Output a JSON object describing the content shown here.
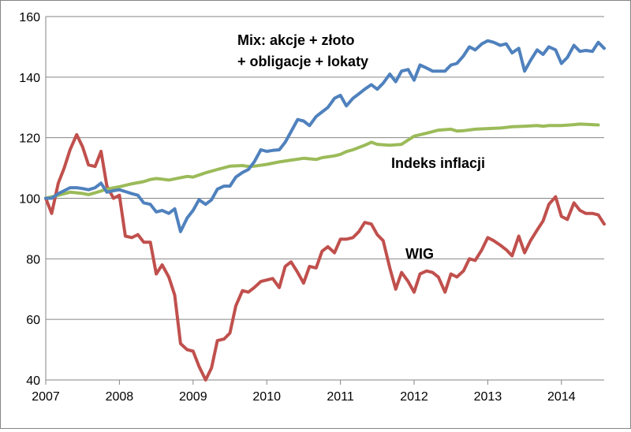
{
  "chart_data": {
    "type": "line",
    "title": "",
    "xlabel": "",
    "ylabel": "",
    "xlim": [
      2007.0,
      2014.58
    ],
    "ylim": [
      40,
      160
    ],
    "grid": "horizontal",
    "legend": "none",
    "x_ticks": [
      "2007",
      "2008",
      "2009",
      "2010",
      "2011",
      "2012",
      "2013",
      "2014"
    ],
    "y_ticks": [
      "40",
      "60",
      "80",
      "100",
      "120",
      "140",
      "160"
    ],
    "annotations": [
      {
        "lines": [
          "Mix: akcje + złoto",
          "+ obligacje + lokaty"
        ],
        "series": "mix"
      },
      {
        "lines": [
          "Indeks inflacji"
        ],
        "series": "inflation"
      },
      {
        "lines": [
          "WIG"
        ],
        "series": "wig"
      }
    ],
    "series": [
      {
        "key": "wig",
        "color": "#C0504D",
        "points": [
          [
            2007.0,
            100
          ],
          [
            2007.08,
            95
          ],
          [
            2007.17,
            105
          ],
          [
            2007.25,
            110
          ],
          [
            2007.33,
            116
          ],
          [
            2007.42,
            121
          ],
          [
            2007.5,
            117
          ],
          [
            2007.58,
            111
          ],
          [
            2007.67,
            110.5
          ],
          [
            2007.75,
            115.5
          ],
          [
            2007.83,
            104
          ],
          [
            2007.92,
            100
          ],
          [
            2008.0,
            101
          ],
          [
            2008.08,
            87.5
          ],
          [
            2008.17,
            87
          ],
          [
            2008.25,
            88
          ],
          [
            2008.33,
            85.5
          ],
          [
            2008.42,
            85.5
          ],
          [
            2008.5,
            75
          ],
          [
            2008.58,
            78
          ],
          [
            2008.67,
            74
          ],
          [
            2008.75,
            68
          ],
          [
            2008.83,
            52
          ],
          [
            2008.92,
            50
          ],
          [
            2009.0,
            49.5
          ],
          [
            2009.08,
            44.5
          ],
          [
            2009.17,
            40
          ],
          [
            2009.25,
            44
          ],
          [
            2009.33,
            53
          ],
          [
            2009.42,
            53.5
          ],
          [
            2009.5,
            55.5
          ],
          [
            2009.58,
            64.5
          ],
          [
            2009.67,
            69.5
          ],
          [
            2009.75,
            69
          ],
          [
            2009.83,
            70.5
          ],
          [
            2009.92,
            72.5
          ],
          [
            2010.0,
            73
          ],
          [
            2010.08,
            73.5
          ],
          [
            2010.17,
            70.5
          ],
          [
            2010.25,
            77.5
          ],
          [
            2010.33,
            79
          ],
          [
            2010.42,
            75.5
          ],
          [
            2010.5,
            72
          ],
          [
            2010.58,
            77.5
          ],
          [
            2010.67,
            77
          ],
          [
            2010.75,
            82.5
          ],
          [
            2010.83,
            84
          ],
          [
            2010.92,
            82
          ],
          [
            2011.0,
            86.5
          ],
          [
            2011.08,
            86.5
          ],
          [
            2011.17,
            87
          ],
          [
            2011.25,
            89
          ],
          [
            2011.33,
            92
          ],
          [
            2011.42,
            91.5
          ],
          [
            2011.5,
            88
          ],
          [
            2011.58,
            86
          ],
          [
            2011.67,
            77
          ],
          [
            2011.75,
            70
          ],
          [
            2011.83,
            75.5
          ],
          [
            2011.92,
            72.5
          ],
          [
            2012.0,
            69
          ],
          [
            2012.08,
            75
          ],
          [
            2012.17,
            76
          ],
          [
            2012.25,
            75.5
          ],
          [
            2012.33,
            74
          ],
          [
            2012.42,
            69
          ],
          [
            2012.5,
            75
          ],
          [
            2012.58,
            74
          ],
          [
            2012.67,
            76
          ],
          [
            2012.75,
            80
          ],
          [
            2012.83,
            79.5
          ],
          [
            2012.92,
            83
          ],
          [
            2013.0,
            87
          ],
          [
            2013.08,
            86
          ],
          [
            2013.17,
            84.5
          ],
          [
            2013.25,
            83
          ],
          [
            2013.33,
            81
          ],
          [
            2013.42,
            87.5
          ],
          [
            2013.5,
            82
          ],
          [
            2013.58,
            86
          ],
          [
            2013.67,
            89.5
          ],
          [
            2013.75,
            92.5
          ],
          [
            2013.83,
            98
          ],
          [
            2013.92,
            100.5
          ],
          [
            2014.0,
            94
          ],
          [
            2014.08,
            93
          ],
          [
            2014.17,
            98.5
          ],
          [
            2014.25,
            96
          ],
          [
            2014.33,
            95
          ],
          [
            2014.42,
            95
          ],
          [
            2014.5,
            94.5
          ],
          [
            2014.58,
            91.5
          ]
        ]
      },
      {
        "key": "inflation",
        "color": "#9BBB59",
        "points": [
          [
            2007.0,
            100
          ],
          [
            2007.17,
            101
          ],
          [
            2007.33,
            102
          ],
          [
            2007.5,
            101.6
          ],
          [
            2007.58,
            101.2
          ],
          [
            2007.67,
            101.8
          ],
          [
            2007.83,
            103
          ],
          [
            2008.0,
            103.8
          ],
          [
            2008.17,
            104.8
          ],
          [
            2008.33,
            105.5
          ],
          [
            2008.42,
            106.2
          ],
          [
            2008.5,
            106.5
          ],
          [
            2008.58,
            106.3
          ],
          [
            2008.67,
            106
          ],
          [
            2008.83,
            106.8
          ],
          [
            2008.92,
            107.2
          ],
          [
            2009.0,
            107
          ],
          [
            2009.17,
            108.4
          ],
          [
            2009.33,
            109.5
          ],
          [
            2009.5,
            110.6
          ],
          [
            2009.67,
            110.8
          ],
          [
            2009.75,
            110.5
          ],
          [
            2009.83,
            110.6
          ],
          [
            2010.0,
            111.2
          ],
          [
            2010.17,
            112
          ],
          [
            2010.33,
            112.6
          ],
          [
            2010.5,
            113.2
          ],
          [
            2010.67,
            112.8
          ],
          [
            2010.75,
            113.4
          ],
          [
            2010.92,
            114
          ],
          [
            2011.0,
            114.5
          ],
          [
            2011.08,
            115.4
          ],
          [
            2011.17,
            116
          ],
          [
            2011.33,
            117.5
          ],
          [
            2011.42,
            118.5
          ],
          [
            2011.5,
            117.8
          ],
          [
            2011.67,
            117.5
          ],
          [
            2011.83,
            117.8
          ],
          [
            2012.0,
            120.5
          ],
          [
            2012.17,
            121.5
          ],
          [
            2012.33,
            122.5
          ],
          [
            2012.5,
            122.8
          ],
          [
            2012.58,
            122.2
          ],
          [
            2012.67,
            122.3
          ],
          [
            2012.83,
            122.8
          ],
          [
            2013.0,
            123
          ],
          [
            2013.17,
            123.2
          ],
          [
            2013.33,
            123.6
          ],
          [
            2013.5,
            123.8
          ],
          [
            2013.67,
            124
          ],
          [
            2013.75,
            123.8
          ],
          [
            2013.83,
            124
          ],
          [
            2014.0,
            124
          ],
          [
            2014.17,
            124.3
          ],
          [
            2014.25,
            124.5
          ],
          [
            2014.42,
            124.3
          ],
          [
            2014.5,
            124.2
          ]
        ]
      },
      {
        "key": "mix",
        "color": "#4F81BD",
        "points": [
          [
            2007.0,
            100
          ],
          [
            2007.08,
            100
          ],
          [
            2007.17,
            101.5
          ],
          [
            2007.25,
            102.5
          ],
          [
            2007.33,
            103.5
          ],
          [
            2007.42,
            103.5
          ],
          [
            2007.5,
            103.2
          ],
          [
            2007.58,
            102.8
          ],
          [
            2007.67,
            103.5
          ],
          [
            2007.75,
            105
          ],
          [
            2007.83,
            102
          ],
          [
            2007.92,
            102.5
          ],
          [
            2008.0,
            102.8
          ],
          [
            2008.08,
            102.2
          ],
          [
            2008.17,
            101.5
          ],
          [
            2008.25,
            101
          ],
          [
            2008.33,
            98.5
          ],
          [
            2008.42,
            98
          ],
          [
            2008.5,
            95.5
          ],
          [
            2008.58,
            96
          ],
          [
            2008.67,
            95
          ],
          [
            2008.75,
            96.5
          ],
          [
            2008.83,
            89
          ],
          [
            2008.92,
            93.5
          ],
          [
            2009.0,
            96
          ],
          [
            2009.08,
            99.5
          ],
          [
            2009.17,
            98
          ],
          [
            2009.25,
            99.5
          ],
          [
            2009.33,
            103
          ],
          [
            2009.42,
            104
          ],
          [
            2009.5,
            104
          ],
          [
            2009.58,
            107
          ],
          [
            2009.67,
            108.5
          ],
          [
            2009.75,
            109.5
          ],
          [
            2009.83,
            112
          ],
          [
            2009.92,
            116
          ],
          [
            2010.0,
            115.5
          ],
          [
            2010.08,
            115.8
          ],
          [
            2010.17,
            116
          ],
          [
            2010.25,
            118.5
          ],
          [
            2010.33,
            122
          ],
          [
            2010.42,
            126
          ],
          [
            2010.5,
            125.5
          ],
          [
            2010.58,
            124
          ],
          [
            2010.67,
            127
          ],
          [
            2010.75,
            128.5
          ],
          [
            2010.83,
            130
          ],
          [
            2010.92,
            133
          ],
          [
            2011.0,
            134
          ],
          [
            2011.08,
            130.5
          ],
          [
            2011.17,
            133
          ],
          [
            2011.25,
            134.5
          ],
          [
            2011.33,
            136
          ],
          [
            2011.42,
            137.5
          ],
          [
            2011.5,
            136
          ],
          [
            2011.58,
            138
          ],
          [
            2011.67,
            141
          ],
          [
            2011.75,
            138.5
          ],
          [
            2011.83,
            142
          ],
          [
            2011.92,
            142.5
          ],
          [
            2012.0,
            139
          ],
          [
            2012.08,
            144
          ],
          [
            2012.17,
            143
          ],
          [
            2012.25,
            142
          ],
          [
            2012.33,
            142
          ],
          [
            2012.42,
            142
          ],
          [
            2012.5,
            144
          ],
          [
            2012.58,
            144.5
          ],
          [
            2012.67,
            147
          ],
          [
            2012.75,
            150
          ],
          [
            2012.83,
            149
          ],
          [
            2012.92,
            151
          ],
          [
            2013.0,
            152
          ],
          [
            2013.08,
            151.5
          ],
          [
            2013.17,
            150.5
          ],
          [
            2013.25,
            151
          ],
          [
            2013.33,
            148
          ],
          [
            2013.42,
            149.5
          ],
          [
            2013.5,
            142
          ],
          [
            2013.58,
            145.5
          ],
          [
            2013.67,
            149
          ],
          [
            2013.75,
            147.5
          ],
          [
            2013.83,
            150
          ],
          [
            2013.92,
            149
          ],
          [
            2014.0,
            144.5
          ],
          [
            2014.08,
            146.5
          ],
          [
            2014.17,
            150.5
          ],
          [
            2014.25,
            148.5
          ],
          [
            2014.33,
            148.8
          ],
          [
            2014.42,
            148.5
          ],
          [
            2014.5,
            151.5
          ],
          [
            2014.58,
            149.5
          ]
        ]
      }
    ]
  }
}
